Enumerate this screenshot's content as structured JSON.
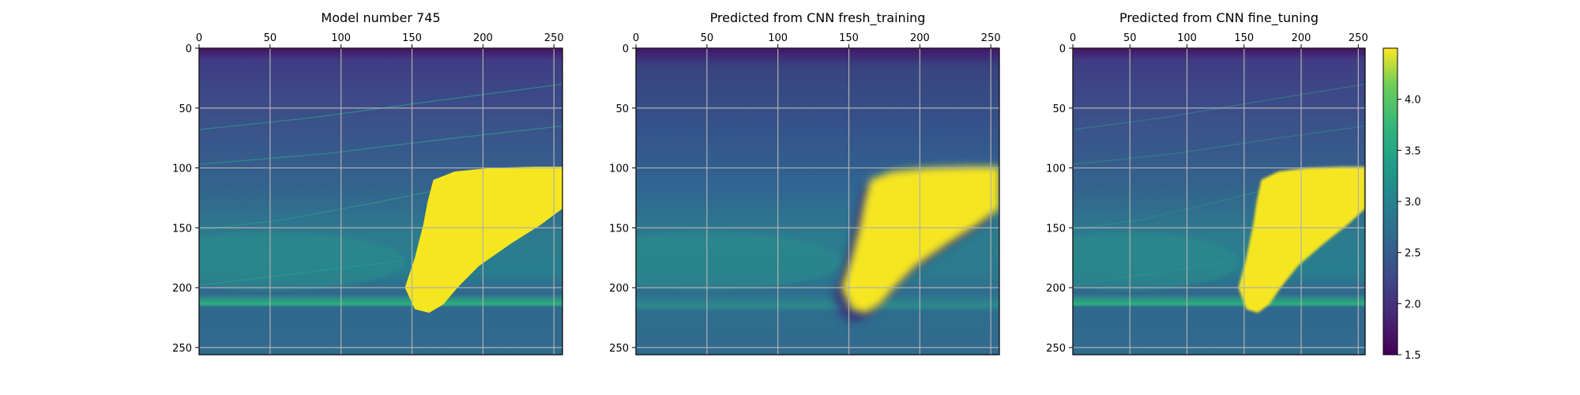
{
  "chart_data": {
    "type": "heatmap",
    "colormap": "viridis",
    "grid": true,
    "panels": [
      {
        "title": "Model number 745",
        "variant": "sharp",
        "xticks": [
          0,
          50,
          100,
          150,
          200,
          250
        ],
        "yticks": [
          0,
          50,
          100,
          150,
          200,
          250
        ],
        "xlim": [
          0,
          256
        ],
        "ylim": [
          256,
          0
        ]
      },
      {
        "title": "Predicted from CNN fresh_training",
        "variant": "smooth",
        "xticks": [
          0,
          50,
          100,
          150,
          200,
          250
        ],
        "yticks": [
          0,
          50,
          100,
          150,
          200,
          250
        ],
        "xlim": [
          0,
          256
        ],
        "ylim": [
          256,
          0
        ]
      },
      {
        "title": "Predicted from CNN fine_tuning",
        "variant": "fine",
        "xticks": [
          0,
          50,
          100,
          150,
          200,
          250
        ],
        "yticks": [
          0,
          50,
          100,
          150,
          200,
          250
        ],
        "xlim": [
          0,
          256
        ],
        "ylim": [
          256,
          0
        ]
      }
    ],
    "colorbar": {
      "range": [
        1.5,
        4.5
      ],
      "ticks": [
        "1.5",
        "2.0",
        "2.5",
        "3.0",
        "3.5",
        "4.0"
      ]
    }
  }
}
